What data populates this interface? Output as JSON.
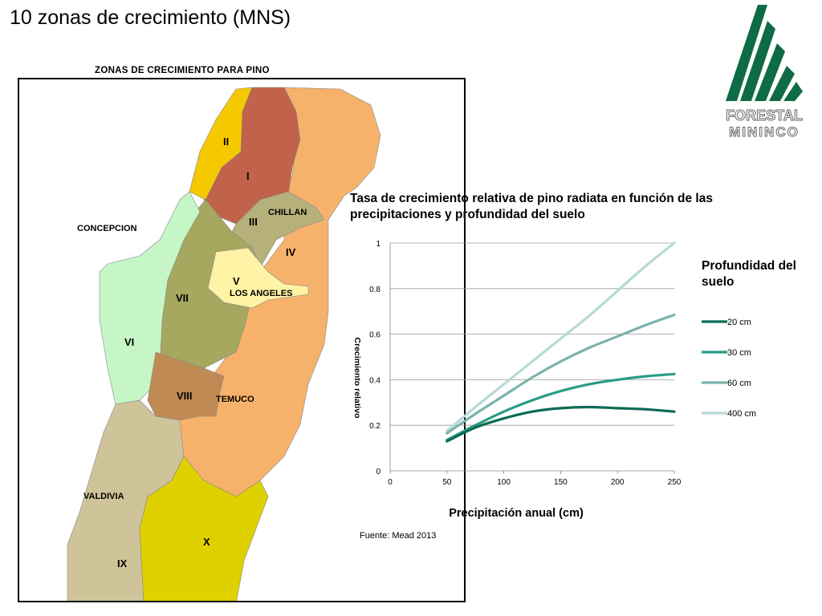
{
  "slide": {
    "title": "10 zonas de crecimiento (MNS)",
    "source": "Fuente: Mead 2013"
  },
  "map": {
    "title": "ZONAS DE CRECIMIENTO PARA  PINO",
    "zones": [
      "I",
      "II",
      "III",
      "IV",
      "V",
      "VI",
      "VII",
      "VIII",
      "IX",
      "X"
    ],
    "cities": [
      "CONCEPCION",
      "CHILLAN",
      "LOS ANGELES",
      "TEMUCO",
      "VALDIVIA"
    ],
    "zone_colors": {
      "I": "#c0634a",
      "II": "#f5c800",
      "III": "#b6b07a",
      "IV": "#f6b26b",
      "V": "#fff3a6",
      "VI": "#c6f6c6",
      "VII": "#a6a860",
      "VIII": "#c08a55",
      "IX": "#cfc39a",
      "X": "#dfd000"
    }
  },
  "logo": {
    "line1": "FORESTAL",
    "line2": "MININCO",
    "color": "#0e6b46"
  },
  "chart": {
    "title": "Tasa de crecimiento relativa de pino radiata en función de las precipitaciones y profundidad del suelo",
    "legend_title": "Profundidad del suelo"
  },
  "chart_data": {
    "type": "line",
    "title": "Tasa de crecimiento relativa de pino radiata en función de las precipitaciones y profundidad del suelo",
    "xlabel": "Precipitación anual (cm)",
    "ylabel": "Crecimiento relativo",
    "xlim": [
      0,
      250
    ],
    "ylim": [
      0,
      1
    ],
    "xticks": [
      "0",
      "50",
      "100",
      "150",
      "200",
      "250"
    ],
    "yticks": [
      "0",
      "0.2",
      "0.4",
      "0.6",
      "0.8",
      "1"
    ],
    "grid": true,
    "legend_title": "Profundidad del suelo",
    "legend_position": "right",
    "series": [
      {
        "name": "20 cm",
        "color": "#0b6b55",
        "x": [
          50,
          75,
          100,
          125,
          150,
          175,
          200,
          225,
          250
        ],
        "values": [
          0.13,
          0.19,
          0.23,
          0.26,
          0.275,
          0.28,
          0.275,
          0.27,
          0.26
        ]
      },
      {
        "name": "30 cm",
        "color": "#2a9c86",
        "x": [
          50,
          75,
          100,
          125,
          150,
          175,
          200,
          225,
          250
        ],
        "values": [
          0.135,
          0.2,
          0.26,
          0.31,
          0.35,
          0.38,
          0.4,
          0.415,
          0.425
        ]
      },
      {
        "name": "60 cm",
        "color": "#7ab3ad",
        "x": [
          50,
          75,
          100,
          125,
          150,
          175,
          200,
          225,
          250
        ],
        "values": [
          0.165,
          0.25,
          0.33,
          0.41,
          0.48,
          0.54,
          0.59,
          0.64,
          0.685
        ]
      },
      {
        "name": "400 cm",
        "color": "#b6d9d6",
        "x": [
          50,
          75,
          100,
          125,
          150,
          175,
          200,
          225,
          250
        ],
        "values": [
          0.175,
          0.28,
          0.38,
          0.48,
          0.58,
          0.68,
          0.79,
          0.9,
          1.0
        ]
      }
    ]
  }
}
